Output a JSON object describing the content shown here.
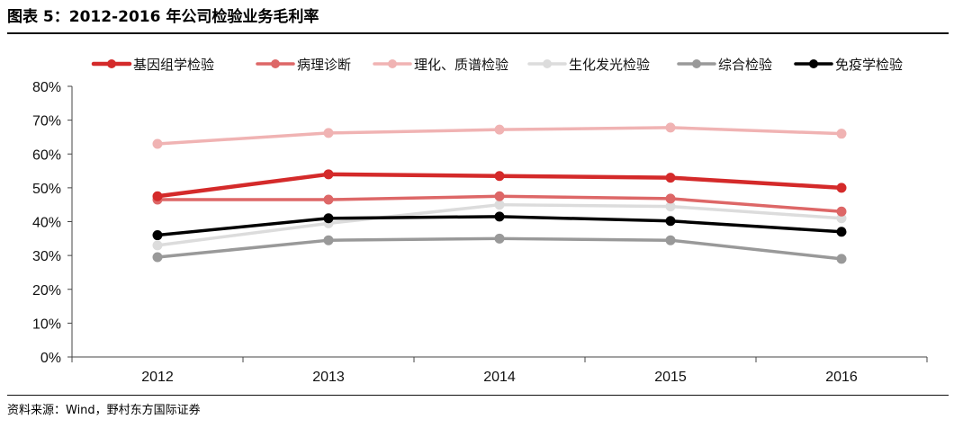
{
  "header": {
    "title": "图表 5：2012-2016 年公司检验业务毛利率"
  },
  "footer": {
    "source": "资料来源：Wind，野村东方国际证券"
  },
  "chart_data": {
    "type": "line",
    "categories": [
      "2012",
      "2013",
      "2014",
      "2015",
      "2016"
    ],
    "ylim": [
      0,
      80
    ],
    "ytick_step": 10,
    "ytick_suffix": "%",
    "grid": false,
    "legend_position": "top",
    "series": [
      {
        "name": "基因组学检验",
        "color": "#d42a2a",
        "width": 4.5,
        "values": [
          47.5,
          54,
          53.5,
          53,
          50
        ]
      },
      {
        "name": "病理诊断",
        "color": "#dd6767",
        "width": 3.5,
        "values": [
          46.5,
          46.5,
          47.5,
          46.8,
          43
        ]
      },
      {
        "name": "理化、质谱检验",
        "color": "#f0b3b3",
        "width": 3.5,
        "values": [
          63,
          66.2,
          67.2,
          67.8,
          66
        ]
      },
      {
        "name": "生化发光检验",
        "color": "#dcdcdc",
        "width": 3.5,
        "values": [
          33,
          39.5,
          45,
          44.5,
          41
        ]
      },
      {
        "name": "综合检验",
        "color": "#999999",
        "width": 3.5,
        "values": [
          29.5,
          34.5,
          35,
          34.5,
          29
        ]
      },
      {
        "name": "免疫学检验",
        "color": "#000000",
        "width": 3.5,
        "values": [
          36,
          41,
          41.5,
          40.2,
          37
        ]
      }
    ]
  }
}
